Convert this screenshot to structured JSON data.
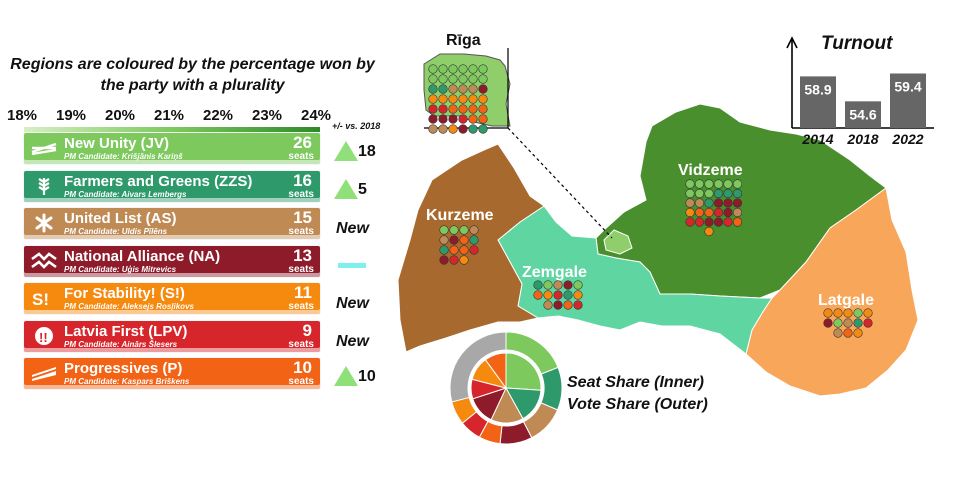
{
  "title": "Regions are coloured by the percentage won by the party with a plurality",
  "scale_ticks": [
    "18%",
    "19%",
    "20%",
    "21%",
    "22%",
    "23%",
    "24%"
  ],
  "change_header": "+/- vs. 2018",
  "seats_word": "seats",
  "parties": [
    {
      "name": "New Unity (JV)",
      "pm": "PM Candidate: Krišjānis Kariņš",
      "seats": "26",
      "change": "18",
      "change_type": "up",
      "color": "#7dc95e",
      "icon": "crossed-lines-icon"
    },
    {
      "name": "Farmers and Greens (ZZS)",
      "pm": "PM Candidate: Aivars Lembergs",
      "seats": "16",
      "change": "5",
      "change_type": "up",
      "color": "#2e9a6c",
      "icon": "wheat-icon"
    },
    {
      "name": "United List (AS)",
      "pm": "PM Candidate: Uldis Pīlēns",
      "seats": "15",
      "change": "New",
      "change_type": "new",
      "color": "#c08a55",
      "icon": "snowflake-icon"
    },
    {
      "name": "National Alliance (NA)",
      "pm": "PM Candidate: Uģis Mitrevics",
      "seats": "13",
      "change": "",
      "change_type": "same",
      "color": "#8e1b2a",
      "icon": "chevron-x-icon"
    },
    {
      "name": "For Stability! (S!)",
      "pm": "PM Candidate: Aleksejs Rosļikovs",
      "seats": "11",
      "change": "New",
      "change_type": "new",
      "color": "#f58a0f",
      "icon": "s-exclaim-icon"
    },
    {
      "name": "Latvia First (LPV)",
      "pm": "PM Candidate: Ainārs Šlesers",
      "seats": "9",
      "change": "New",
      "change_type": "new",
      "color": "#d7262b",
      "icon": "circle-exclaim-icon"
    },
    {
      "name": "Progressives (P)",
      "pm": "PM Candidate: Kaspars Briškens",
      "seats": "10",
      "change": "10",
      "change_type": "up",
      "color": "#f26316",
      "icon": "slash-bars-icon"
    }
  ],
  "turnout": {
    "title": "Turnout",
    "years": [
      "2014",
      "2018",
      "2022"
    ],
    "values": [
      58.9,
      54.6,
      59.4
    ],
    "value_labels": [
      "58.9",
      "54.6",
      "59.4"
    ]
  },
  "regions": [
    {
      "name": "Rīga",
      "fill": "#8fce6a"
    },
    {
      "name": "Vidzeme",
      "fill": "#4a8f2e"
    },
    {
      "name": "Kurzeme",
      "fill": "#a8692f"
    },
    {
      "name": "Zemgale",
      "fill": "#5fd6a2"
    },
    {
      "name": "Latgale",
      "fill": "#f8a65a"
    }
  ],
  "donut_legend": [
    "Seat Share (Inner)",
    "Vote Share (Outer)"
  ],
  "chart_data": [
    {
      "type": "bar",
      "title": "Turnout",
      "categories": [
        "2014",
        "2018",
        "2022"
      ],
      "values": [
        58.9,
        54.6,
        59.4
      ],
      "bar_color": "#666666"
    },
    {
      "type": "pie",
      "title": "Seat Share (Inner)",
      "categories": [
        "New Unity (JV)",
        "Farmers and Greens (ZZS)",
        "United List (AS)",
        "National Alliance (NA)",
        "Latvia First (LPV)",
        "For Stability! (S!)",
        "Progressives (P)"
      ],
      "values": [
        26,
        16,
        15,
        13,
        9,
        11,
        10
      ],
      "colors": [
        "#7dc95e",
        "#2e9a6c",
        "#c08a55",
        "#8e1b2a",
        "#d7262b",
        "#f58a0f",
        "#f26316"
      ]
    },
    {
      "type": "pie",
      "title": "Vote Share (Outer)",
      "categories": [
        "New Unity (JV)",
        "Farmers and Greens (ZZS)",
        "United List (AS)",
        "National Alliance (NA)",
        "Progressives (P)",
        "Latvia First (LPV)",
        "For Stability! (S!)",
        "Other"
      ],
      "values": [
        19,
        12.4,
        11,
        9.3,
        6.2,
        6.3,
        6.8,
        29
      ],
      "colors": [
        "#7dc95e",
        "#2e9a6c",
        "#c08a55",
        "#8e1b2a",
        "#f26316",
        "#d7262b",
        "#f58a0f",
        "#a8a8a8"
      ]
    }
  ]
}
